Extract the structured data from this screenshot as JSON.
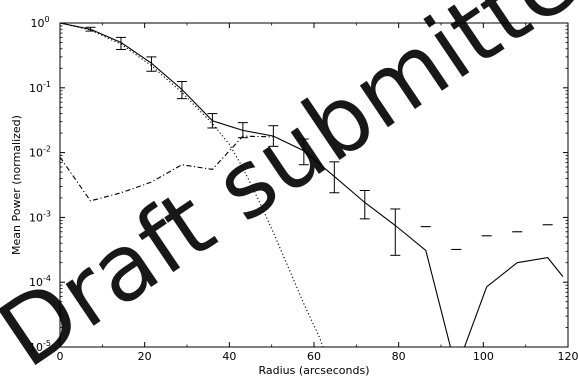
{
  "chart_data": {
    "type": "line",
    "title": "",
    "xlabel": "Radius (arcseconds)",
    "ylabel": "Mean Power (normalized)",
    "xlim": [
      0,
      120
    ],
    "ylim": [
      1e-05,
      1
    ],
    "yscale": "log",
    "grid": false,
    "x_ticks": [
      {
        "value": 0,
        "label": "0"
      },
      {
        "value": 20,
        "label": "20"
      },
      {
        "value": 40,
        "label": "40"
      },
      {
        "value": 60,
        "label": "60"
      },
      {
        "value": 80,
        "label": "80"
      },
      {
        "value": 100,
        "label": "100"
      },
      {
        "value": 120,
        "label": "120"
      }
    ],
    "y_ticks": [
      {
        "value": 1,
        "base": "10",
        "exp": "0"
      },
      {
        "value": 0.1,
        "base": "10",
        "exp": "-1"
      },
      {
        "value": 0.01,
        "base": "10",
        "exp": "-2"
      },
      {
        "value": 0.001,
        "base": "10",
        "exp": "-3"
      },
      {
        "value": 0.0001,
        "base": "10",
        "exp": "-4"
      },
      {
        "value": 1e-05,
        "base": "10",
        "exp": "-5"
      }
    ],
    "series": [
      {
        "style": "solid",
        "color": "#000000",
        "x": [
          0,
          7.2,
          14.4,
          21.6,
          28.8,
          36,
          43.2,
          50.4,
          57.6,
          64.8,
          72,
          79.2,
          86.4,
          93.6,
          100.8,
          108,
          115.2,
          118.8
        ],
        "y": [
          1.0,
          0.8,
          0.5,
          0.24,
          0.094,
          0.031,
          0.022,
          0.018,
          0.0107,
          0.0043,
          0.0017,
          0.00075,
          0.00031,
          4.5e-06,
          8.5e-05,
          0.0002,
          0.00024,
          0.000122
        ]
      },
      {
        "style": "dotted",
        "color": "#000000",
        "x": [
          0,
          7.2,
          14.4,
          21.6,
          28.8,
          36,
          40,
          43.2,
          47,
          50.4,
          54,
          57.6,
          61.2,
          64.8,
          66
        ],
        "y": [
          1.0,
          0.78,
          0.47,
          0.22,
          0.085,
          0.028,
          0.0135,
          0.0058,
          0.0018,
          0.00058,
          0.000165,
          4.65e-05,
          1.45e-05,
          3.5e-06,
          1e-05
        ]
      },
      {
        "style": "dashdot",
        "color": "#000000",
        "x": [
          0,
          7.2,
          14.4,
          21.6,
          28.8,
          36,
          43.2,
          50.4
        ],
        "y": [
          0.0085,
          0.0018,
          0.0024,
          0.0035,
          0.0065,
          0.0055,
          0.018,
          0.0175
        ]
      }
    ],
    "error_bars": {
      "x": [
        7.2,
        14.4,
        21.6,
        28.8,
        36,
        43.2,
        50.4,
        57.6,
        64.8,
        72,
        79.2
      ],
      "y": [
        0.8,
        0.5,
        0.24,
        0.094,
        0.031,
        0.022,
        0.018,
        0.0107,
        0.0043,
        0.0017,
        0.00075
      ],
      "low": [
        0.75,
        0.39,
        0.18,
        0.068,
        0.024,
        0.017,
        0.0125,
        0.0065,
        0.0024,
        0.00095,
        0.00026
      ],
      "high": [
        0.86,
        0.6,
        0.3,
        0.125,
        0.04,
        0.029,
        0.026,
        0.0162,
        0.0072,
        0.0026,
        0.00135
      ]
    },
    "upper_limits": {
      "x": [
        86.4,
        93.6,
        100.8,
        108,
        115.2
      ],
      "y": [
        0.00072,
        0.00032,
        0.00052,
        0.0006,
        0.00077
      ]
    }
  },
  "watermark": {
    "text": "Draft submitted"
  }
}
